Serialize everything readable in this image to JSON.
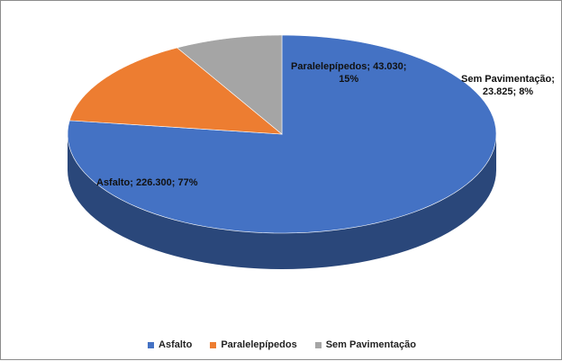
{
  "chart_data": {
    "type": "pie",
    "title": "",
    "categories": [
      "Asfalto",
      "Paralelepípedos",
      "Sem Pavimentação"
    ],
    "values": [
      226300,
      43030,
      23825
    ],
    "percentages": [
      77,
      15,
      8
    ],
    "colors": [
      "#4472C4",
      "#ED7D31",
      "#A5A5A5"
    ],
    "data_labels": [
      {
        "lines": [
          "Asfalto; 226.300; 77%"
        ]
      },
      {
        "lines": [
          "Paralelepípedos; 43.030;",
          "15%"
        ]
      },
      {
        "lines": [
          "Sem Pavimentação;",
          "23.825; 8%"
        ]
      }
    ],
    "legend": {
      "position": "bottom",
      "items": [
        "Asfalto",
        "Paralelepípedos",
        "Sem Pavimentação"
      ]
    },
    "style": "3d"
  }
}
